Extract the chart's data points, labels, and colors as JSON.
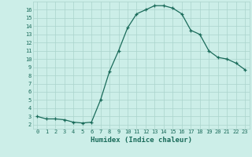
{
  "x": [
    0,
    1,
    2,
    3,
    4,
    5,
    6,
    7,
    8,
    9,
    10,
    11,
    12,
    13,
    14,
    15,
    16,
    17,
    18,
    19,
    20,
    21,
    22,
    23
  ],
  "y": [
    3.0,
    2.7,
    2.7,
    2.6,
    2.3,
    2.2,
    2.3,
    5.0,
    8.5,
    11.0,
    13.8,
    15.5,
    16.0,
    16.5,
    16.5,
    16.2,
    15.5,
    13.5,
    13.0,
    11.0,
    10.2,
    10.0,
    9.5,
    8.7
  ],
  "line_color": "#1a6b5a",
  "marker": "+",
  "marker_size": 3.5,
  "linewidth": 0.9,
  "markeredgewidth": 0.9,
  "xlabel": "Humidex (Indice chaleur)",
  "xlim": [
    -0.5,
    23.5
  ],
  "ylim": [
    1.5,
    17.0
  ],
  "yticks": [
    2,
    3,
    4,
    5,
    6,
    7,
    8,
    9,
    10,
    11,
    12,
    13,
    14,
    15,
    16
  ],
  "xticks": [
    0,
    1,
    2,
    3,
    4,
    5,
    6,
    7,
    8,
    9,
    10,
    11,
    12,
    13,
    14,
    15,
    16,
    17,
    18,
    19,
    20,
    21,
    22,
    23
  ],
  "bg_color": "#cceee8",
  "grid_color": "#aad4cc",
  "tick_color": "#1a6b5a",
  "label_color": "#1a6b5a",
  "tick_fontsize": 5.0,
  "xlabel_fontsize": 6.5
}
